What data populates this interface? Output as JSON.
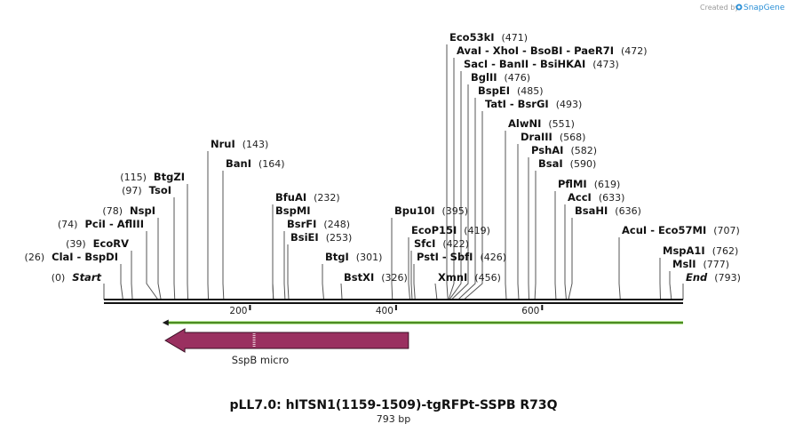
{
  "watermark": {
    "text": "Created by",
    "brand": "SnapGene"
  },
  "map": {
    "title": "pLL7.0: hITSN1(1159-1509)-tgRFPt-SSPB R73Q",
    "length_label": "793 bp",
    "length_bp": 793,
    "ticks": [
      {
        "value": 200,
        "label": "200"
      },
      {
        "value": 400,
        "label": "400"
      },
      {
        "value": 600,
        "label": "600"
      }
    ],
    "start_label": "Start",
    "end_label": "End"
  },
  "sites": [
    {
      "name": "Start",
      "pos": 0,
      "pos_label": "(0)",
      "anchor": 0,
      "special": true
    },
    {
      "name": "ClaI",
      "alt": "BspDI",
      "pos": 26,
      "pos_label": "(26)",
      "anchor": 26
    },
    {
      "name": "EcoRV",
      "pos": 39,
      "pos_label": "(39)",
      "anchor": 39
    },
    {
      "name": "PciI",
      "alt": "AflIII",
      "pos": 74,
      "pos_label": "(74)",
      "anchor": 74
    },
    {
      "name": "NspI",
      "pos": 78,
      "pos_label": "(78)",
      "anchor": 78
    },
    {
      "name": "TsoI",
      "pos": 97,
      "pos_label": "(97)",
      "anchor": 97
    },
    {
      "name": "BtgZI",
      "pos": 115,
      "pos_label": "(115)",
      "anchor": 115
    },
    {
      "name": "NruI",
      "pos": 143,
      "pos_label": "(143)",
      "anchor": 143
    },
    {
      "name": "BanI",
      "pos": 164,
      "pos_label": "(164)",
      "anchor": 164
    },
    {
      "name": "BfuAI",
      "pos": 232,
      "pos_label": "(232)",
      "anchor": 232
    },
    {
      "name": "BspMI",
      "pos": 232,
      "pos_label": "",
      "anchor": 232
    },
    {
      "name": "BsrFI",
      "pos": 248,
      "pos_label": "(248)",
      "anchor": 248
    },
    {
      "name": "BsiEI",
      "pos": 253,
      "pos_label": "(253)",
      "anchor": 253
    },
    {
      "name": "BtgI",
      "pos": 301,
      "pos_label": "(301)",
      "anchor": 301
    },
    {
      "name": "BstXI",
      "pos": 326,
      "pos_label": "(326)",
      "anchor": 326
    },
    {
      "name": "Bpu10I",
      "pos": 395,
      "pos_label": "(395)",
      "anchor": 395
    },
    {
      "name": "EcoP15I",
      "pos": 419,
      "pos_label": "(419)",
      "anchor": 419
    },
    {
      "name": "SfcI",
      "pos": 422,
      "pos_label": "(422)",
      "anchor": 422
    },
    {
      "name": "PstI",
      "alt": "SbfI",
      "pos": 426,
      "pos_label": "(426)",
      "anchor": 426
    },
    {
      "name": "XmnI",
      "pos": 456,
      "pos_label": "(456)",
      "anchor": 456
    },
    {
      "name": "Eco53kI",
      "pos": 471,
      "pos_label": "(471)",
      "anchor": 471
    },
    {
      "name": "AvaI",
      "alt": "XhoI",
      "alt2": "BsoBI",
      "alt3": "PaeR7I",
      "pos": 472,
      "pos_label": "(472)",
      "anchor": 472
    },
    {
      "name": "SacI",
      "alt": "BanII",
      "alt2": "BsiHKAI",
      "pos": 473,
      "pos_label": "(473)",
      "anchor": 473
    },
    {
      "name": "BglII",
      "pos": 476,
      "pos_label": "(476)",
      "anchor": 476
    },
    {
      "name": "BspEI",
      "pos": 485,
      "pos_label": "(485)",
      "anchor": 485
    },
    {
      "name": "TatI",
      "alt": "BsrGI",
      "pos": 493,
      "pos_label": "(493)",
      "anchor": 493
    },
    {
      "name": "AlwNI",
      "pos": 551,
      "pos_label": "(551)",
      "anchor": 551
    },
    {
      "name": "DraIII",
      "pos": 568,
      "pos_label": "(568)",
      "anchor": 568
    },
    {
      "name": "PshAI",
      "pos": 582,
      "pos_label": "(582)",
      "anchor": 582
    },
    {
      "name": "BsaI",
      "pos": 590,
      "pos_label": "(590)",
      "anchor": 590
    },
    {
      "name": "PflMI",
      "pos": 619,
      "pos_label": "(619)",
      "anchor": 619
    },
    {
      "name": "AccI",
      "pos": 633,
      "pos_label": "(633)",
      "anchor": 633
    },
    {
      "name": "BsaHI",
      "pos": 636,
      "pos_label": "(636)",
      "anchor": 636
    },
    {
      "name": "AcuI",
      "alt": "Eco57MI",
      "pos": 707,
      "pos_label": "(707)",
      "anchor": 707
    },
    {
      "name": "MspA1I",
      "pos": 762,
      "pos_label": "(762)",
      "anchor": 762
    },
    {
      "name": "MslI",
      "pos": 777,
      "pos_label": "(777)",
      "anchor": 777
    },
    {
      "name": "End",
      "pos": 793,
      "pos_label": "(793)",
      "anchor": 793,
      "special": true
    }
  ],
  "features": [
    {
      "name": "SspB micro",
      "start": 84,
      "end": 417,
      "direction": "reverse",
      "color": "#9a3060",
      "label": "SspB micro"
    }
  ],
  "orf_line": {
    "start": 80,
    "end": 793,
    "color": "#6ccf2a"
  },
  "colors": {
    "backbone": "#111111",
    "site_line": "#555555"
  }
}
